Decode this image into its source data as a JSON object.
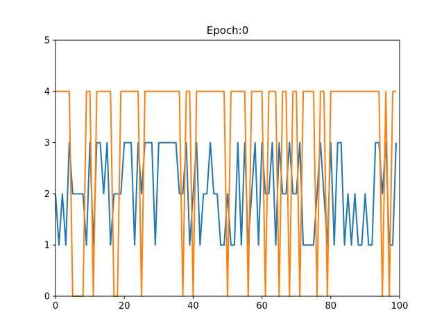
{
  "chart_data": {
    "type": "line",
    "title": "Epoch:0",
    "xlabel": "",
    "ylabel": "",
    "xlim": [
      0,
      100
    ],
    "ylim": [
      0,
      5
    ],
    "x_ticks": [
      0,
      20,
      40,
      60,
      80,
      100
    ],
    "y_ticks": [
      0,
      1,
      2,
      3,
      4,
      5
    ],
    "grid": false,
    "legend": "none",
    "x": [
      0,
      1,
      2,
      3,
      4,
      5,
      6,
      7,
      8,
      9,
      10,
      11,
      12,
      13,
      14,
      15,
      16,
      17,
      18,
      19,
      20,
      21,
      22,
      23,
      24,
      25,
      26,
      27,
      28,
      29,
      30,
      31,
      32,
      33,
      34,
      35,
      36,
      37,
      38,
      39,
      40,
      41,
      42,
      43,
      44,
      45,
      46,
      47,
      48,
      49,
      50,
      51,
      52,
      53,
      54,
      55,
      56,
      57,
      58,
      59,
      60,
      61,
      62,
      63,
      64,
      65,
      66,
      67,
      68,
      69,
      70,
      71,
      72,
      73,
      74,
      75,
      76,
      77,
      78,
      79,
      80,
      81,
      82,
      83,
      84,
      85,
      86,
      87,
      88,
      89,
      90,
      91,
      92,
      93,
      94,
      95,
      96,
      97,
      98,
      99
    ],
    "series": [
      {
        "color": "#1f77b4",
        "values": [
          2,
          1,
          2,
          1,
          3,
          2,
          2,
          2,
          2,
          1,
          3,
          1,
          3,
          3,
          2,
          3,
          1,
          2,
          2,
          2,
          3,
          3,
          3,
          1,
          3,
          2,
          3,
          3,
          3,
          1,
          3,
          3,
          3,
          3,
          3,
          3,
          2,
          2,
          3,
          1,
          2,
          3,
          1,
          2,
          2,
          3,
          2,
          2,
          1,
          1,
          2,
          1,
          1,
          3,
          1,
          3,
          1,
          2,
          3,
          1,
          3,
          2,
          2,
          3,
          1,
          3,
          2,
          2,
          3,
          2,
          2,
          3,
          1,
          1,
          1,
          1,
          2,
          3,
          2,
          1,
          3,
          1,
          3,
          3,
          1,
          2,
          1,
          2,
          1,
          1,
          2,
          1,
          1,
          3,
          3,
          2,
          3,
          1,
          1,
          3
        ]
      },
      {
        "color": "#ff7f0e",
        "values": [
          4,
          4,
          4,
          4,
          4,
          0,
          0,
          0,
          0,
          4,
          4,
          0,
          4,
          4,
          4,
          4,
          4,
          0,
          0,
          4,
          4,
          4,
          4,
          4,
          4,
          0,
          4,
          4,
          4,
          4,
          4,
          4,
          4,
          4,
          4,
          4,
          4,
          0,
          4,
          4,
          0,
          4,
          4,
          4,
          4,
          4,
          4,
          4,
          4,
          4,
          0,
          4,
          4,
          4,
          4,
          4,
          0,
          4,
          4,
          4,
          4,
          0,
          4,
          4,
          4,
          0,
          4,
          4,
          0,
          4,
          4,
          0,
          4,
          4,
          4,
          4,
          0,
          4,
          4,
          0,
          4,
          4,
          4,
          4,
          4,
          4,
          4,
          4,
          4,
          4,
          4,
          4,
          4,
          4,
          4,
          0,
          4,
          0,
          4,
          4
        ]
      }
    ]
  }
}
